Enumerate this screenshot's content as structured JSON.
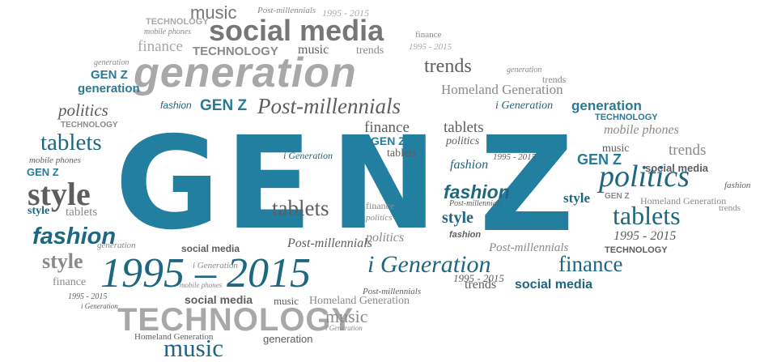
{
  "words": {
    "music": "music",
    "social_media": "social media",
    "generation": "generation",
    "technology": "TECHNOLOGY",
    "finance": "finance",
    "trends": "trends",
    "years": "1995 - 2015",
    "years_big": "1995 – 2015",
    "gen_z": "GEN Z",
    "post_millennials": "Post-millennials",
    "homeland_generation": "Homeland Generation",
    "i_generation": "i Generation",
    "politics": "politics",
    "tablets": "tablets",
    "mobile_phones": "mobile phones",
    "style": "style",
    "fashion": "fashion"
  },
  "center": {
    "g": "G",
    "e": "E",
    "n": "N",
    "z": "Z"
  },
  "colors": {
    "accent": "#2a7a96",
    "center": "#237fa0",
    "grey": "#8a8a8a"
  }
}
